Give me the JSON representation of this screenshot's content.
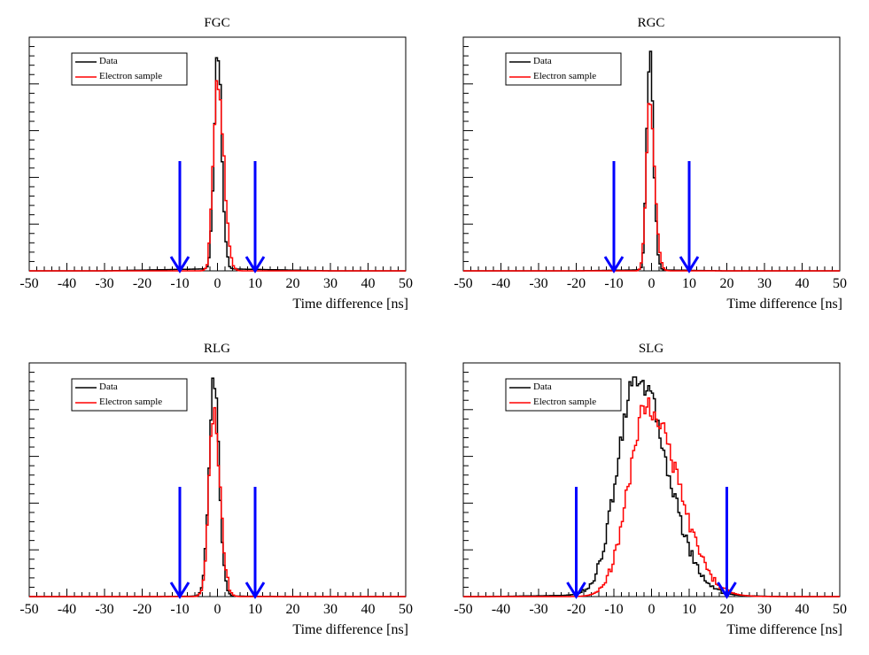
{
  "chart_data": [
    {
      "type": "line",
      "title": "FGC",
      "xlabel": "Time difference [ns]",
      "ylabel": "",
      "xlim": [
        -50,
        50
      ],
      "xticks": [
        -50,
        -40,
        -30,
        -20,
        -10,
        0,
        10,
        20,
        30,
        40,
        50
      ],
      "tick_labels": [
        "-50",
        "-40",
        "-30",
        "-20",
        "-10",
        "0",
        "10",
        "20",
        "30",
        "40",
        "50"
      ],
      "legend": [
        "Data",
        "Electron sample"
      ],
      "legend_position": "top-left",
      "series_colors": [
        "#000000",
        "#ff0000"
      ],
      "arrow_color": "#0000ff",
      "cut_arrows": [
        -10,
        10
      ],
      "peak_center": 0,
      "series": [
        {
          "name": "Data",
          "peak": 1.0,
          "sigma_left": 0.9,
          "sigma_right": 1.1,
          "tail_level": 0.01,
          "tail_left": 30,
          "tail_right": 30
        },
        {
          "name": "Electron sample",
          "peak": 0.89,
          "sigma_left": 1.1,
          "sigma_right": 1.6,
          "tail_level": 0.0,
          "tail_left": 10,
          "tail_right": 12
        }
      ]
    },
    {
      "type": "line",
      "title": "RGC",
      "xlabel": "Time difference [ns]",
      "ylabel": "",
      "xlim": [
        -50,
        50
      ],
      "xticks": [
        -50,
        -40,
        -30,
        -20,
        -10,
        0,
        10,
        20,
        30,
        40,
        50
      ],
      "tick_labels": [
        "-50",
        "-40",
        "-30",
        "-20",
        "-10",
        "0",
        "10",
        "20",
        "30",
        "40",
        "50"
      ],
      "legend": [
        "Data",
        "Electron sample"
      ],
      "legend_position": "top-left",
      "series_colors": [
        "#000000",
        "#ff0000"
      ],
      "arrow_color": "#0000ff",
      "cut_arrows": [
        -10,
        10
      ],
      "peak_center": -0.5,
      "series": [
        {
          "name": "Data",
          "peak": 1.0,
          "sigma_left": 0.8,
          "sigma_right": 1.0,
          "tail_level": 0.005,
          "tail_left": 20,
          "tail_right": 20
        },
        {
          "name": "Electron sample",
          "peak": 0.82,
          "sigma_left": 0.9,
          "sigma_right": 1.3,
          "tail_level": 0.0,
          "tail_left": 8,
          "tail_right": 12
        }
      ]
    },
    {
      "type": "line",
      "title": "RLG",
      "xlabel": "Time difference [ns]",
      "ylabel": "",
      "xlim": [
        -50,
        50
      ],
      "xticks": [
        -50,
        -40,
        -30,
        -20,
        -10,
        0,
        10,
        20,
        30,
        40,
        50
      ],
      "tick_labels": [
        "-50",
        "-40",
        "-30",
        "-20",
        "-10",
        "0",
        "10",
        "20",
        "30",
        "40",
        "50"
      ],
      "legend": [
        "Data",
        "Electron sample"
      ],
      "legend_position": "top-left",
      "series_colors": [
        "#000000",
        "#ff0000"
      ],
      "arrow_color": "#0000ff",
      "cut_arrows": [
        -10,
        10
      ],
      "peak_center": -1,
      "series": [
        {
          "name": "Data",
          "peak": 1.0,
          "sigma_left": 1.3,
          "sigma_right": 1.4,
          "tail_level": 0.003,
          "tail_left": 15,
          "tail_right": 20
        },
        {
          "name": "Electron sample",
          "peak": 0.84,
          "sigma_left": 1.3,
          "sigma_right": 1.7,
          "tail_level": 0.0,
          "tail_left": 8,
          "tail_right": 12
        }
      ]
    },
    {
      "type": "line",
      "title": "SLG",
      "xlabel": "Time difference [ns]",
      "ylabel": "",
      "xlim": [
        -50,
        50
      ],
      "xticks": [
        -50,
        -40,
        -30,
        -20,
        -10,
        0,
        10,
        20,
        30,
        40,
        50
      ],
      "tick_labels": [
        "-50",
        "-40",
        "-30",
        "-20",
        "-10",
        "0",
        "10",
        "20",
        "30",
        "40",
        "50"
      ],
      "legend": [
        "Data",
        "Electron sample"
      ],
      "legend_position": "top-left",
      "series_colors": [
        "#000000",
        "#ff0000"
      ],
      "arrow_color": "#0000ff",
      "cut_arrows": [
        -20,
        20
      ],
      "peak_center": -4,
      "series": [
        {
          "name": "Data",
          "peak": 1.0,
          "sigma_left": 5.0,
          "sigma_right": 8.0,
          "tail_level": 0.01,
          "tail_left": 40,
          "tail_right": 40
        },
        {
          "name": "Electron sample",
          "peak": 0.87,
          "sigma_left": 5.0,
          "sigma_right": 8.0,
          "tail_level": 0.0,
          "tail_left": 12,
          "tail_right": 25,
          "center": -1
        }
      ]
    }
  ]
}
